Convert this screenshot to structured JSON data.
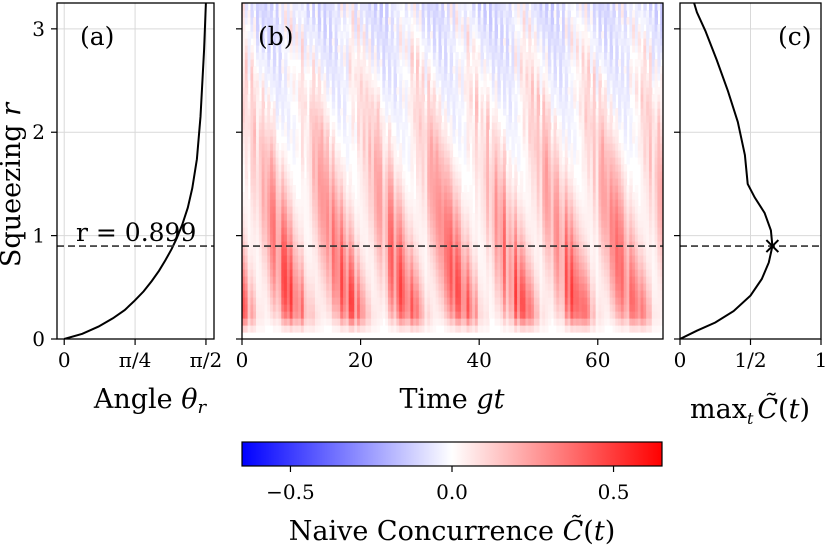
{
  "chart_data": [
    {
      "type": "line",
      "panel_label": "(a)",
      "xlabel": "Angle θ_r",
      "ylabel": "Squeezing r",
      "xlim": [
        -0.08,
        1.66
      ],
      "ylim": [
        0,
        3.25
      ],
      "x_ticks": [
        {
          "value": 0,
          "label": "0"
        },
        {
          "value": 0.7854,
          "label": "π/4"
        },
        {
          "value": 1.5708,
          "label": "π/2"
        }
      ],
      "y_ticks": [
        {
          "value": 0,
          "label": "0"
        },
        {
          "value": 1,
          "label": "1"
        },
        {
          "value": 2,
          "label": "2"
        },
        {
          "value": 3,
          "label": "3"
        }
      ],
      "grid": true,
      "hline": {
        "y": 0.899,
        "style": "dashed",
        "label": "r = 0.899"
      },
      "series": [
        {
          "x": [
            0,
            0.2,
            0.38,
            0.54,
            0.67,
            0.78,
            0.88,
            0.97,
            1.05,
            1.12,
            1.19,
            1.25,
            1.31,
            1.37,
            1.42,
            1.47,
            1.51,
            1.55,
            1.57
          ],
          "y": [
            0,
            0.05,
            0.12,
            0.2,
            0.28,
            0.37,
            0.46,
            0.56,
            0.66,
            0.76,
            0.87,
            0.98,
            1.11,
            1.27,
            1.46,
            1.74,
            2.15,
            2.8,
            3.25
          ]
        }
      ]
    },
    {
      "type": "heatmap",
      "panel_label": "(b)",
      "xlabel": "Time gt",
      "xlim": [
        0,
        71
      ],
      "ylim": [
        0,
        3.25
      ],
      "x_ticks": [
        {
          "value": 0,
          "label": "0"
        },
        {
          "value": 20,
          "label": "20"
        },
        {
          "value": 40,
          "label": "40"
        },
        {
          "value": 60,
          "label": "60"
        }
      ],
      "hline": {
        "y": 0.899,
        "style": "dashed"
      },
      "colorbar": {
        "label": "Naive Concurrence C̃(t)",
        "range": [
          -0.65,
          0.65
        ],
        "colormap": "bwr",
        "ticks": [
          {
            "value": -0.5,
            "label": "−0.5"
          },
          {
            "value": 0,
            "label": "0.0"
          },
          {
            "value": 0.5,
            "label": "0.5"
          }
        ]
      }
    },
    {
      "type": "line",
      "panel_label": "(c)",
      "xlabel": "max_t C̃(t)",
      "xlim": [
        0,
        1
      ],
      "ylim": [
        0,
        3.25
      ],
      "x_ticks": [
        {
          "value": 0,
          "label": "0"
        },
        {
          "value": 0.5,
          "label": "1/2"
        },
        {
          "value": 1,
          "label": "1"
        }
      ],
      "grid": true,
      "hline": {
        "y": 0.899,
        "style": "dashed"
      },
      "marker": {
        "x": 0.655,
        "y": 0.899,
        "symbol": "x"
      },
      "series": [
        {
          "x": [
            0,
            0.12,
            0.25,
            0.38,
            0.5,
            0.58,
            0.63,
            0.655,
            0.645,
            0.6,
            0.53,
            0.48,
            0.46,
            0.41,
            0.34,
            0.26,
            0.18,
            0.12,
            0.1
          ],
          "y": [
            0,
            0.08,
            0.16,
            0.27,
            0.42,
            0.58,
            0.74,
            0.899,
            1.05,
            1.22,
            1.37,
            1.5,
            1.78,
            2.1,
            2.4,
            2.7,
            2.98,
            3.16,
            3.25
          ]
        }
      ]
    }
  ],
  "colors": {
    "line": "#000000",
    "dashed": "#333333",
    "cmap_low": "#0000ff",
    "cmap_mid": "#ffffff",
    "cmap_high": "#ff0000"
  }
}
